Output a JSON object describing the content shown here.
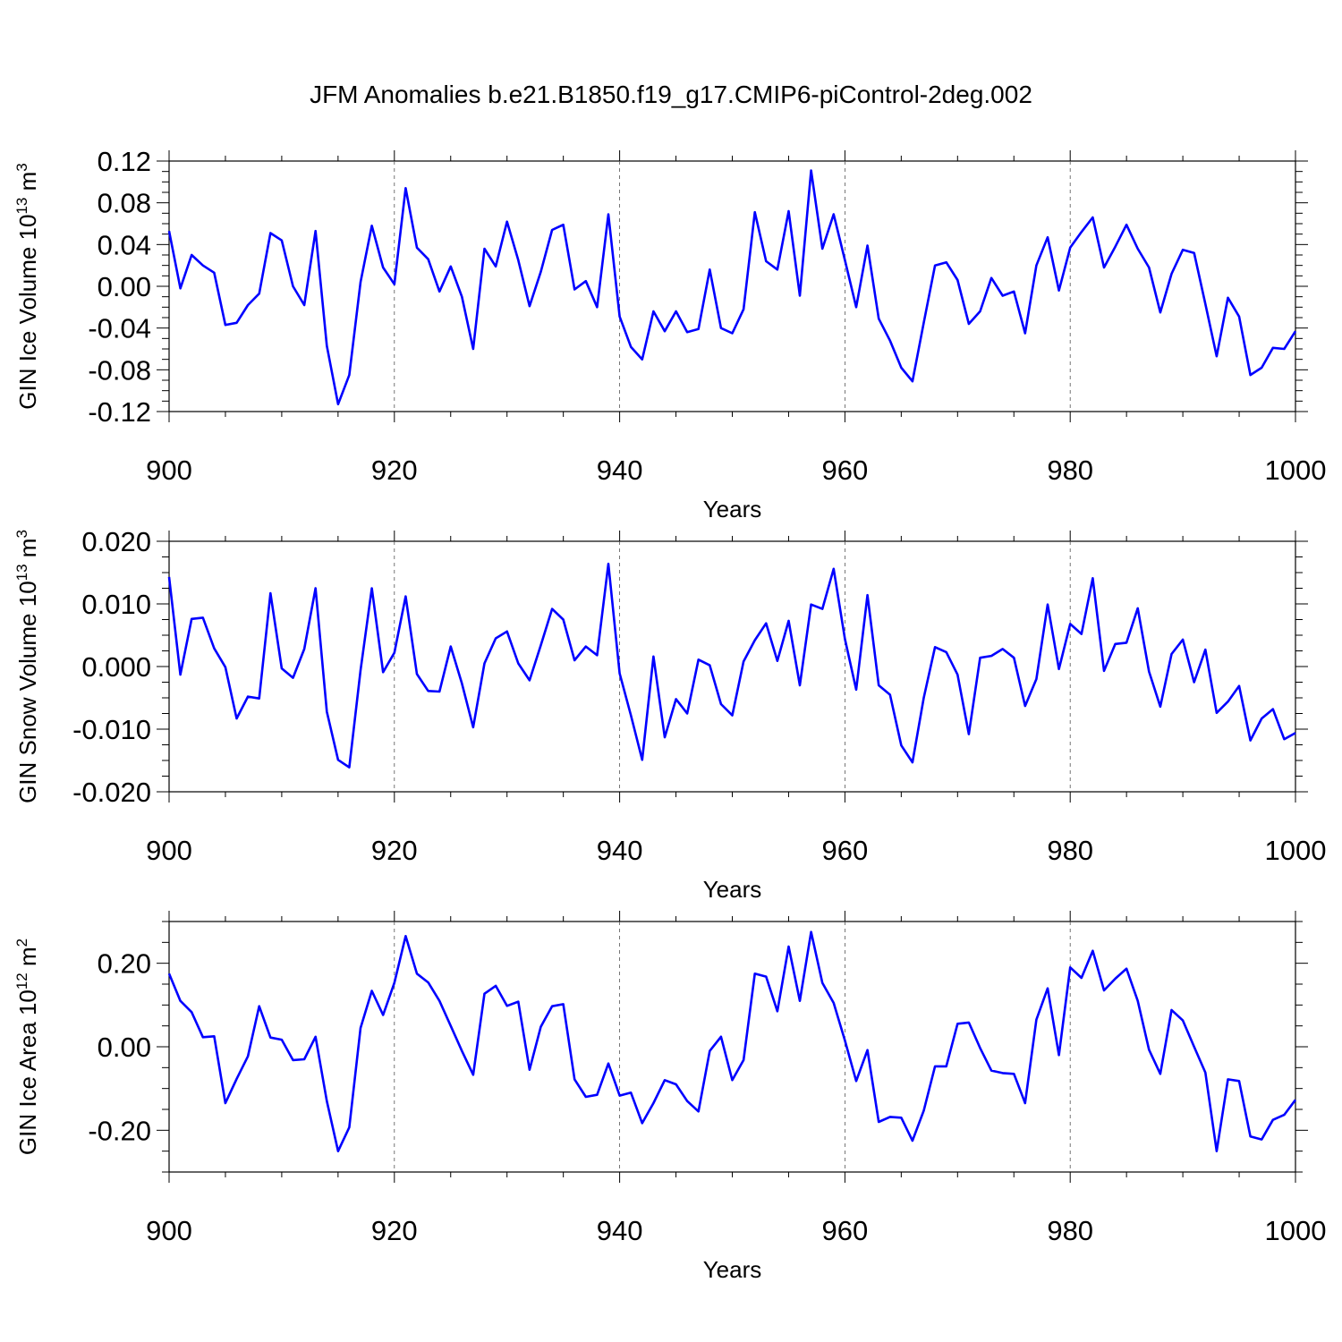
{
  "title": "JFM Anomalies b.e21.B1850.f19_g17.CMIP6-piControl-2deg.002",
  "line_color": "#0000ff",
  "chart_data": [
    {
      "type": "line",
      "xlabel": "Years",
      "ylabel": {
        "main": "GIN Ice Volume 10",
        "exp": "13",
        "unit": " m",
        "unit_exp": "3"
      },
      "xlim": [
        900,
        1000
      ],
      "ylim": [
        -0.12,
        0.12
      ],
      "xticks": [
        900,
        920,
        940,
        960,
        980,
        1000
      ],
      "yticks": [
        -0.12,
        -0.08,
        -0.04,
        0.0,
        0.04,
        0.08,
        0.12
      ],
      "ytick_labels": [
        "-0.12",
        "-0.08",
        "-0.04",
        "0.00",
        "0.04",
        "0.08",
        "0.12"
      ],
      "x_start": 900,
      "values": [
        0.053,
        -0.002,
        0.03,
        0.02,
        0.013,
        -0.037,
        -0.035,
        -0.018,
        -0.007,
        0.051,
        0.044,
        0.0,
        -0.018,
        0.053,
        -0.057,
        -0.113,
        -0.085,
        0.004,
        0.058,
        0.018,
        0.002,
        0.094,
        0.037,
        0.026,
        -0.005,
        0.019,
        -0.01,
        -0.06,
        0.036,
        0.019,
        0.062,
        0.025,
        -0.019,
        0.014,
        0.054,
        0.059,
        -0.003,
        0.005,
        -0.02,
        0.069,
        -0.029,
        -0.058,
        -0.07,
        -0.024,
        -0.043,
        -0.024,
        -0.044,
        -0.041,
        0.016,
        -0.04,
        -0.045,
        -0.022,
        0.071,
        0.024,
        0.016,
        0.072,
        -0.009,
        0.111,
        0.036,
        0.069,
        0.025,
        -0.02,
        0.039,
        -0.031,
        -0.052,
        -0.078,
        -0.091,
        -0.035,
        0.02,
        0.023,
        0.006,
        -0.036,
        -0.024,
        0.008,
        -0.009,
        -0.005,
        -0.045,
        0.02,
        0.047,
        -0.004,
        0.037,
        0.052,
        0.066,
        0.018,
        0.038,
        0.059,
        0.036,
        0.018,
        -0.025,
        0.012,
        0.035,
        0.032,
        -0.017,
        -0.067,
        -0.011,
        -0.029,
        -0.085,
        -0.078,
        -0.059,
        -0.06,
        -0.043
      ]
    },
    {
      "type": "line",
      "xlabel": "Years",
      "ylabel": {
        "main": "GIN Snow Volume 10",
        "exp": "13",
        "unit": " m",
        "unit_exp": "3"
      },
      "xlim": [
        900,
        1000
      ],
      "ylim": [
        -0.02,
        0.02
      ],
      "xticks": [
        900,
        920,
        940,
        960,
        980,
        1000
      ],
      "yticks": [
        -0.02,
        -0.01,
        0.0,
        0.01,
        0.02
      ],
      "ytick_labels": [
        "-0.020",
        "-0.010",
        "0.000",
        "0.010",
        "0.020"
      ],
      "x_start": 900,
      "values": [
        0.0143,
        -0.0013,
        0.0076,
        0.0078,
        0.0029,
        -0.0001,
        -0.0083,
        -0.0048,
        -0.0051,
        0.0117,
        -0.0003,
        -0.0018,
        0.0028,
        0.0125,
        -0.0072,
        -0.0149,
        -0.0161,
        -0.0006,
        0.0125,
        -0.0009,
        0.0022,
        0.0112,
        -0.0012,
        -0.0039,
        -0.004,
        0.0032,
        -0.0027,
        -0.0097,
        0.0005,
        0.0045,
        0.0056,
        0.0005,
        -0.0022,
        0.0034,
        0.0092,
        0.0075,
        0.001,
        0.0032,
        0.0018,
        0.0164,
        -0.0011,
        -0.0078,
        -0.0149,
        0.0016,
        -0.0113,
        -0.0052,
        -0.0075,
        0.0011,
        0.0002,
        -0.006,
        -0.0078,
        0.0008,
        0.0042,
        0.0069,
        0.0009,
        0.0073,
        -0.003,
        0.0099,
        0.0092,
        0.0156,
        0.0044,
        -0.0037,
        0.0114,
        -0.003,
        -0.0045,
        -0.0126,
        -0.0153,
        -0.005,
        0.0031,
        0.0023,
        -0.0013,
        -0.0108,
        0.0014,
        0.0017,
        0.0028,
        0.0014,
        -0.0063,
        -0.002,
        0.0099,
        -0.0004,
        0.0068,
        0.0052,
        0.0141,
        -0.0007,
        0.0036,
        0.0038,
        0.0093,
        -0.0008,
        -0.0064,
        0.002,
        0.0043,
        -0.0025,
        0.0027,
        -0.0074,
        -0.0056,
        -0.0031,
        -0.0118,
        -0.0083,
        -0.0068,
        -0.0116,
        -0.0106
      ]
    },
    {
      "type": "line",
      "xlabel": "Years",
      "ylabel": {
        "main": "GIN Ice Area 10",
        "exp": "12",
        "unit": " m",
        "unit_exp": "2"
      },
      "xlim": [
        900,
        1000
      ],
      "ylim": [
        -0.3,
        0.3
      ],
      "xticks": [
        900,
        920,
        940,
        960,
        980,
        1000
      ],
      "yticks": [
        -0.2,
        0.0,
        0.2
      ],
      "ytick_labels": [
        "-0.20",
        "0.00",
        "0.20"
      ],
      "x_start": 900,
      "values": [
        0.175,
        0.11,
        0.083,
        0.023,
        0.025,
        -0.135,
        -0.077,
        -0.023,
        0.097,
        0.022,
        0.017,
        -0.032,
        -0.03,
        0.024,
        -0.13,
        -0.25,
        -0.193,
        0.045,
        0.134,
        0.076,
        0.153,
        0.265,
        0.175,
        0.154,
        0.11,
        0.05,
        -0.01,
        -0.067,
        0.127,
        0.146,
        0.098,
        0.108,
        -0.055,
        0.048,
        0.097,
        0.102,
        -0.078,
        -0.12,
        -0.115,
        -0.04,
        -0.117,
        -0.11,
        -0.183,
        -0.135,
        -0.08,
        -0.09,
        -0.13,
        -0.155,
        -0.01,
        0.024,
        -0.08,
        -0.032,
        0.175,
        0.168,
        0.085,
        0.24,
        0.11,
        0.275,
        0.153,
        0.105,
        0.015,
        -0.082,
        -0.008,
        -0.18,
        -0.168,
        -0.17,
        -0.225,
        -0.153,
        -0.047,
        -0.047,
        0.055,
        0.058,
        -0.003,
        -0.057,
        -0.063,
        -0.065,
        -0.135,
        0.065,
        0.14,
        -0.02,
        0.19,
        0.165,
        0.23,
        0.135,
        0.163,
        0.187,
        0.11,
        -0.007,
        -0.065,
        0.088,
        0.063,
        0.0,
        -0.062,
        -0.25,
        -0.078,
        -0.082,
        -0.215,
        -0.222,
        -0.175,
        -0.163,
        -0.127
      ]
    }
  ]
}
